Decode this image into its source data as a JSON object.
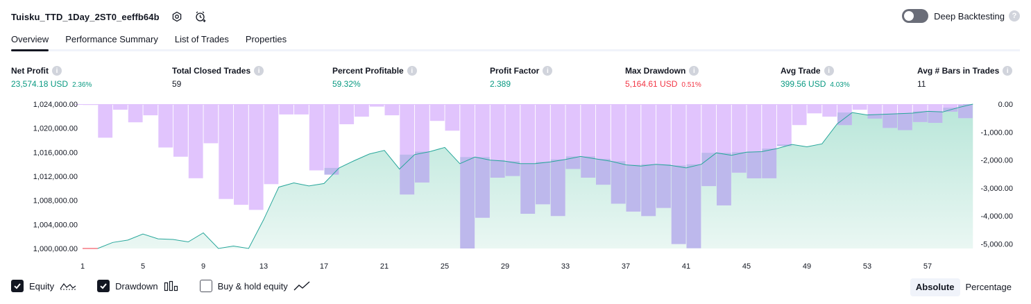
{
  "header": {
    "strategy_name": "Tuisku_TTD_1Day_2ST0_eeffb64b",
    "settings_icon": "settings-gear-icon",
    "alert_icon": "alarm-clock-add-icon"
  },
  "deep_backtesting": {
    "label": "Deep Backtesting",
    "enabled": false,
    "help": "?"
  },
  "tabs": [
    {
      "label": "Overview",
      "active": true
    },
    {
      "label": "Performance Summary",
      "active": false
    },
    {
      "label": "List of Trades",
      "active": false
    },
    {
      "label": "Properties",
      "active": false
    }
  ],
  "metrics": {
    "info_glyph": "i",
    "net_profit": {
      "label": "Net Profit",
      "value": "23,574.18 USD",
      "pct": "2.36%"
    },
    "total_closed_trades": {
      "label": "Total Closed Trades",
      "value": "59"
    },
    "percent_profitable": {
      "label": "Percent Profitable",
      "value": "59.32%"
    },
    "profit_factor": {
      "label": "Profit Factor",
      "value": "2.389"
    },
    "max_drawdown": {
      "label": "Max Drawdown",
      "value": "5,164.61 USD",
      "pct": "0.51%"
    },
    "avg_trade": {
      "label": "Avg Trade",
      "value": "399.56 USD",
      "pct": "4.03%"
    },
    "avg_bars": {
      "label": "Avg # Bars in Trades",
      "value": "11"
    }
  },
  "colors": {
    "equity_line": "#26a69a",
    "equity_fill_top": "#b8e6d9",
    "equity_fill_bottom": "#eaf7f3",
    "equity_loss_line": "#f23645",
    "drawdown_bar": "#e1c4fd",
    "overlap_bar": "#bdb8ec",
    "positive": "#089981",
    "negative": "#f23645"
  },
  "chart_data": {
    "type": "bar+area",
    "title": "",
    "xlabel": "",
    "ylabel": "",
    "x_ticks": [
      1,
      5,
      9,
      13,
      17,
      21,
      25,
      29,
      33,
      37,
      41,
      45,
      49,
      53,
      57
    ],
    "left_axis": {
      "ticks": [
        "1,024,000.00",
        "1,020,000.00",
        "1,016,000.00",
        "1,012,000.00",
        "1,008,000.00",
        "1,004,000.00",
        "1,000,000.00"
      ],
      "range": [
        1000000,
        1024000
      ]
    },
    "right_axis": {
      "ticks": [
        "0.00",
        "-1,000.00",
        "-2,000.00",
        "-3,000.00",
        "-4,000.00",
        "-5,000.00"
      ],
      "range": [
        -5160,
        0
      ]
    },
    "series": [
      {
        "name": "Equity",
        "axis": "left",
        "x": [
          1,
          2,
          3,
          4,
          5,
          6,
          7,
          8,
          9,
          10,
          11,
          12,
          13,
          14,
          15,
          16,
          17,
          18,
          19,
          20,
          21,
          22,
          23,
          24,
          25,
          26,
          27,
          28,
          29,
          30,
          31,
          32,
          33,
          34,
          35,
          36,
          37,
          38,
          39,
          40,
          41,
          42,
          43,
          44,
          45,
          46,
          47,
          48,
          49,
          50,
          51,
          52,
          53,
          54,
          55,
          56,
          57,
          58,
          59,
          60
        ],
        "values": [
          1000000,
          1000000,
          1001000,
          1001400,
          1002400,
          1001600,
          1001500,
          1001100,
          1002600,
          1000000,
          1000400,
          1000000,
          1004800,
          1010200,
          1010900,
          1010400,
          1010800,
          1013400,
          1014600,
          1015700,
          1016300,
          1013200,
          1015600,
          1016100,
          1016800,
          1014100,
          1015200,
          1014700,
          1014500,
          1014100,
          1014100,
          1014400,
          1014800,
          1015300,
          1014900,
          1014500,
          1013900,
          1013700,
          1014000,
          1013800,
          1013400,
          1014000,
          1015900,
          1015500,
          1016000,
          1016100,
          1016600,
          1017300,
          1016900,
          1017400,
          1020700,
          1022600,
          1022200,
          1022300,
          1022400,
          1022500,
          1022800,
          1022700,
          1023400,
          1024000
        ]
      },
      {
        "name": "Drawdown",
        "axis": "right",
        "x": [
          1,
          2,
          3,
          4,
          5,
          6,
          7,
          8,
          9,
          10,
          11,
          12,
          13,
          14,
          15,
          16,
          17,
          18,
          19,
          20,
          21,
          22,
          23,
          24,
          25,
          26,
          27,
          28,
          29,
          30,
          31,
          32,
          33,
          34,
          35,
          36,
          37,
          38,
          39,
          40,
          41,
          42,
          43,
          44,
          45,
          46,
          47,
          48,
          49,
          50,
          51,
          52,
          53,
          54,
          55,
          56,
          57,
          58,
          59
        ],
        "values": [
          -30,
          -1200,
          -200,
          -650,
          -400,
          -1550,
          -1880,
          -2650,
          -1400,
          -3390,
          -3600,
          -3780,
          -2860,
          -370,
          -370,
          -2370,
          -2520,
          -720,
          -450,
          -90,
          -400,
          -3230,
          -2800,
          -600,
          -950,
          -5160,
          -4060,
          -2630,
          -2570,
          -3920,
          -3580,
          -4000,
          -2320,
          -2630,
          -2880,
          -3560,
          -3840,
          -4000,
          -3710,
          -5000,
          -5150,
          -2930,
          -3620,
          -2450,
          -2650,
          -2650,
          -1500,
          -750,
          -330,
          -450,
          -750,
          -200,
          -520,
          -850,
          -930,
          -640,
          -670,
          -270,
          -500
        ]
      }
    ]
  },
  "legend": {
    "equity": {
      "label": "Equity",
      "checked": true,
      "icon": "equity-line-icon"
    },
    "drawdown": {
      "label": "Drawdown",
      "checked": true,
      "icon": "drawdown-bars-icon"
    },
    "buy_hold": {
      "label": "Buy & hold equity",
      "checked": false,
      "icon": "buy-hold-line-icon"
    }
  },
  "mode": {
    "absolute": "Absolute",
    "percentage": "Percentage",
    "selected": "Absolute"
  }
}
